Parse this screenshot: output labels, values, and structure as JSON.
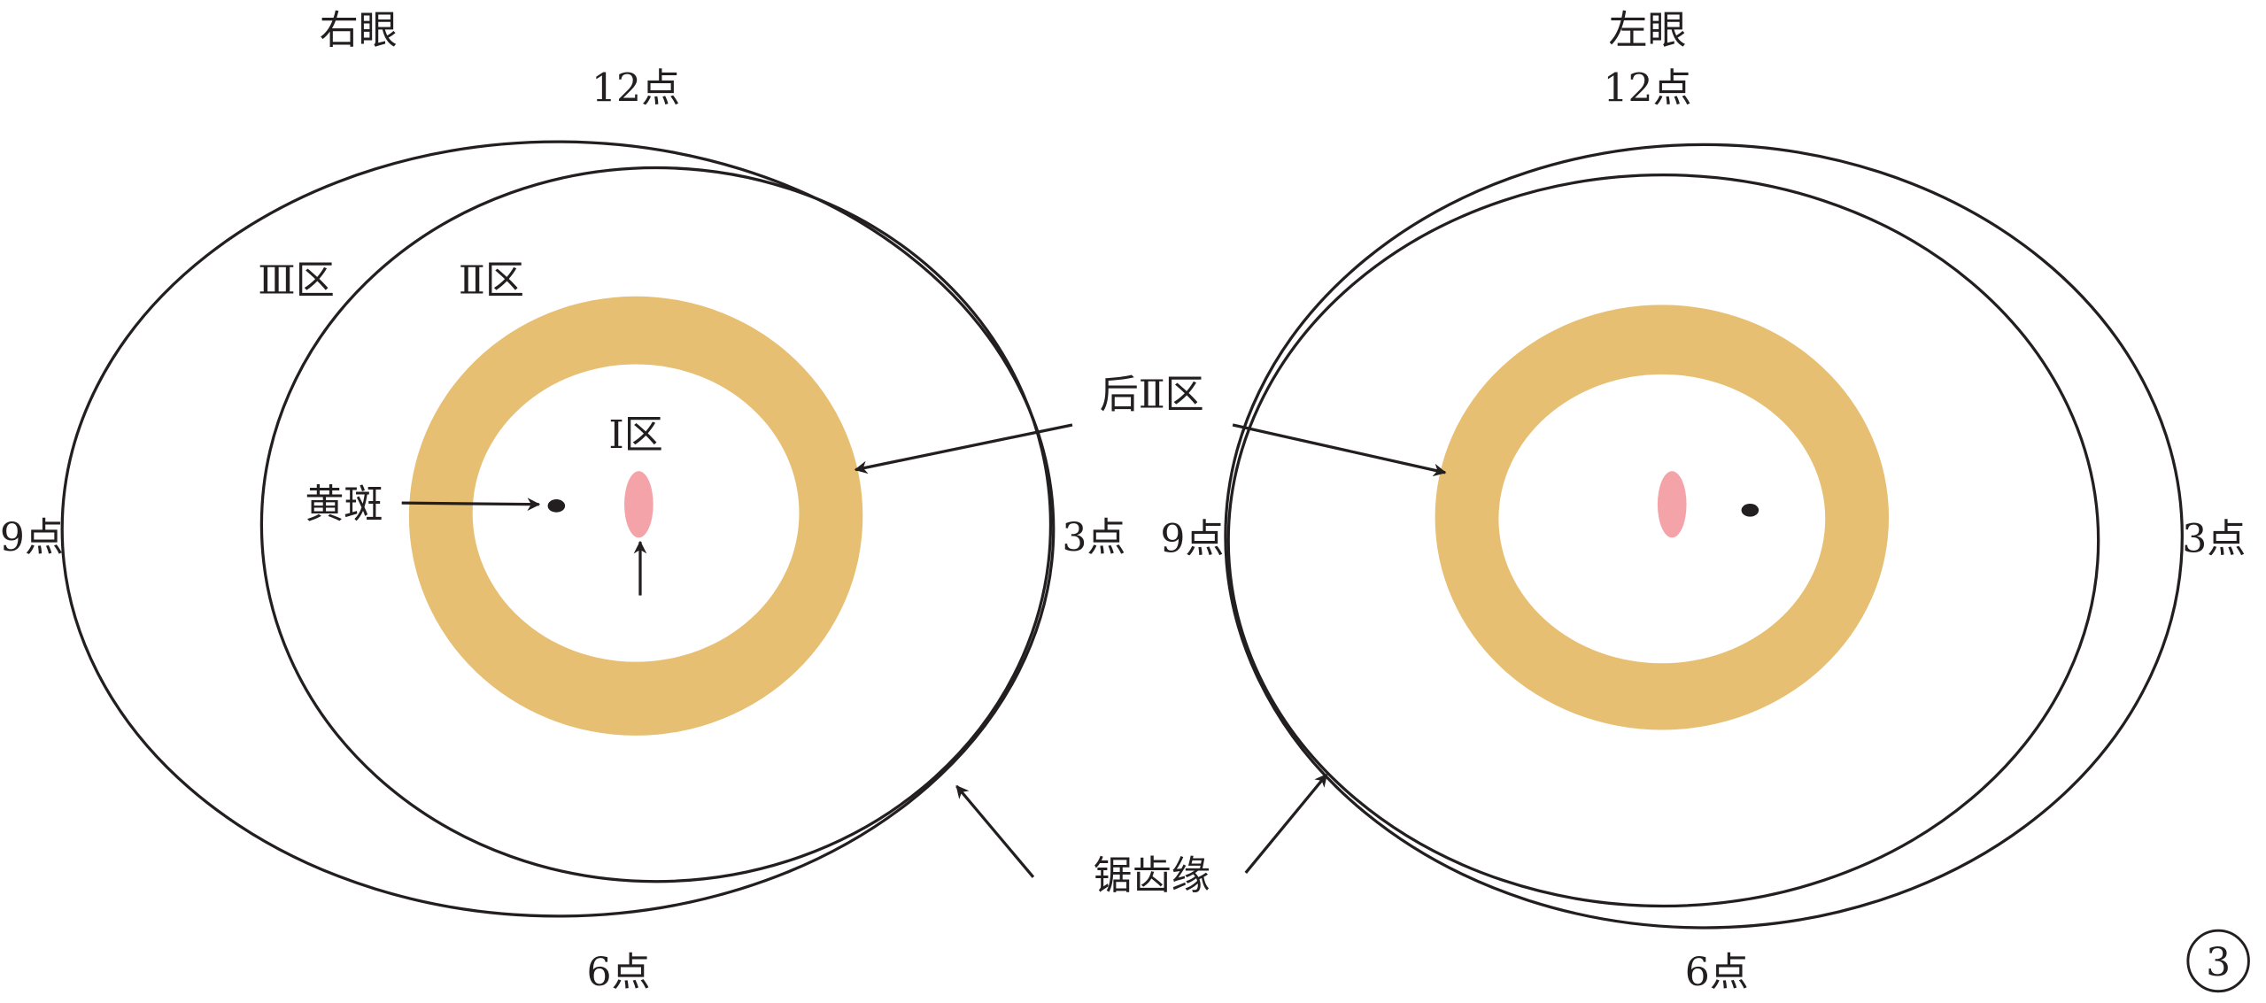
{
  "right_eye": {
    "title": "右眼",
    "clock_12": "12点",
    "clock_3": "3点",
    "clock_6": "6点",
    "clock_9": "9点",
    "zone_3": "Ⅲ区",
    "zone_2": "Ⅱ区",
    "zone_1": "Ⅰ区",
    "macula": "黄斑"
  },
  "left_eye": {
    "title": "左眼",
    "clock_12": "12点",
    "clock_3": "3点",
    "clock_6": "6点",
    "clock_9": "9点"
  },
  "shared_labels": {
    "posterior_zone_2": "后Ⅱ区",
    "ora_serrata": "锯齿缘"
  },
  "figure_number": "3",
  "colors": {
    "ring": "#e6bf72",
    "optic_disc": "#f4a3a8",
    "line": "#231f20"
  }
}
